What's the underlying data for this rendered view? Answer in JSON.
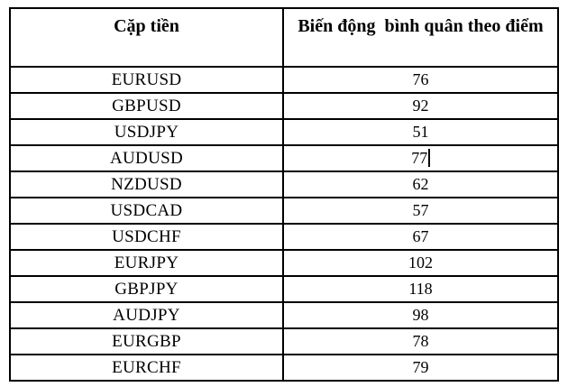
{
  "table": {
    "headers": {
      "pair": "Cặp tiền",
      "volatility": "Biến động  bình quân theo điểm"
    },
    "rows": [
      {
        "pair": "EURUSD",
        "value": "76"
      },
      {
        "pair": "GBPUSD",
        "value": "92"
      },
      {
        "pair": "USDJPY",
        "value": "51"
      },
      {
        "pair": "AUDUSD",
        "value": "77"
      },
      {
        "pair": "NZDUSD",
        "value": "62"
      },
      {
        "pair": "USDCAD",
        "value": "57"
      },
      {
        "pair": "USDCHF",
        "value": "67"
      },
      {
        "pair": "EURJPY",
        "value": "102"
      },
      {
        "pair": "GBPJPY",
        "value": "118"
      },
      {
        "pair": "AUDJPY",
        "value": "98"
      },
      {
        "pair": "EURGBP",
        "value": "78"
      },
      {
        "pair": "EURCHF",
        "value": "79"
      }
    ],
    "colors": {
      "border": "#000000",
      "text": "#000000",
      "background": "#ffffff"
    }
  }
}
